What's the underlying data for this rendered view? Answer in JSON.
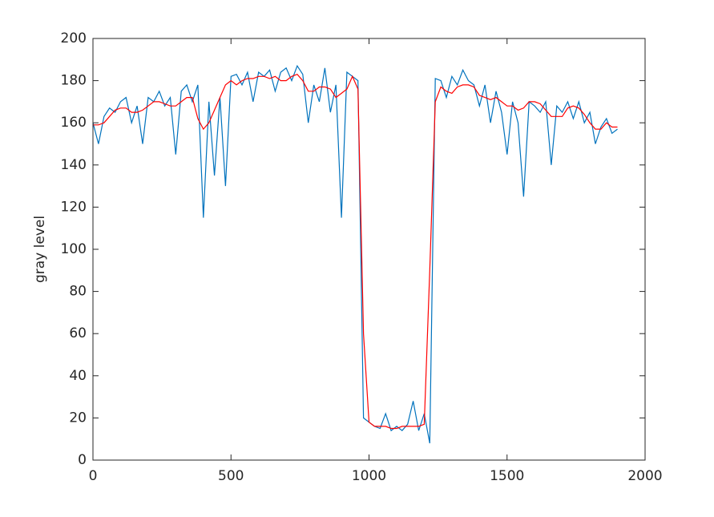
{
  "chart_data": {
    "type": "line",
    "y_label": "gray level",
    "x": [
      0,
      20,
      40,
      60,
      80,
      100,
      120,
      140,
      160,
      180,
      200,
      220,
      240,
      260,
      280,
      300,
      320,
      340,
      360,
      380,
      400,
      420,
      440,
      460,
      480,
      500,
      520,
      540,
      560,
      580,
      600,
      620,
      640,
      660,
      680,
      700,
      720,
      740,
      760,
      780,
      800,
      820,
      840,
      860,
      880,
      900,
      920,
      940,
      960,
      980,
      1000,
      1020,
      1040,
      1060,
      1080,
      1100,
      1120,
      1140,
      1160,
      1180,
      1200,
      1220,
      1240,
      1260,
      1280,
      1300,
      1320,
      1340,
      1360,
      1380,
      1400,
      1420,
      1440,
      1460,
      1480,
      1500,
      1520,
      1540,
      1560,
      1580,
      1600,
      1620,
      1640,
      1660,
      1680,
      1700,
      1720,
      1740,
      1760,
      1780,
      1800,
      1820,
      1840,
      1860,
      1880,
      1900
    ],
    "series": [
      {
        "color": "#0072bd",
        "values": [
          160,
          150,
          163,
          167,
          165,
          170,
          172,
          160,
          168,
          150,
          172,
          170,
          175,
          168,
          172,
          145,
          175,
          178,
          170,
          178,
          115,
          170,
          135,
          172,
          130,
          182,
          183,
          178,
          184,
          170,
          184,
          182,
          185,
          175,
          184,
          186,
          180,
          187,
          183,
          160,
          178,
          170,
          186,
          165,
          178,
          115,
          184,
          182,
          180,
          20,
          18,
          16,
          15,
          22,
          14,
          16,
          14,
          17,
          28,
          14,
          22,
          8,
          181,
          180,
          172,
          182,
          178,
          185,
          180,
          178,
          168,
          178,
          160,
          175,
          165,
          145,
          170,
          160,
          125,
          170,
          168,
          165,
          170,
          140,
          168,
          165,
          170,
          162,
          170,
          160,
          165,
          150,
          158,
          162,
          155,
          157
        ]
      },
      {
        "color": "#ff0000",
        "values": [
          159,
          159,
          160,
          163,
          166,
          167,
          167,
          165,
          165,
          166,
          168,
          170,
          170,
          169,
          168,
          168,
          170,
          172,
          172,
          162,
          157,
          160,
          166,
          172,
          178,
          180,
          178,
          180,
          181,
          181,
          182,
          182,
          181,
          182,
          180,
          180,
          182,
          183,
          180,
          175,
          175,
          177,
          177,
          176,
          172,
          174,
          176,
          182,
          176,
          60,
          18,
          16,
          16,
          16,
          15,
          15,
          16,
          16,
          16,
          16,
          17,
          90,
          170,
          177,
          175,
          174,
          177,
          178,
          178,
          177,
          173,
          172,
          171,
          172,
          170,
          168,
          168,
          166,
          167,
          170,
          170,
          169,
          166,
          163,
          163,
          163,
          167,
          168,
          167,
          164,
          160,
          157,
          157,
          160,
          158,
          158
        ]
      }
    ],
    "xlim": [
      0,
      2000
    ],
    "xticks": [
      0,
      500,
      1000,
      1500,
      2000
    ],
    "ylim": [
      0,
      200
    ],
    "yticks": [
      0,
      20,
      40,
      60,
      80,
      100,
      120,
      140,
      160,
      180,
      200
    ]
  }
}
